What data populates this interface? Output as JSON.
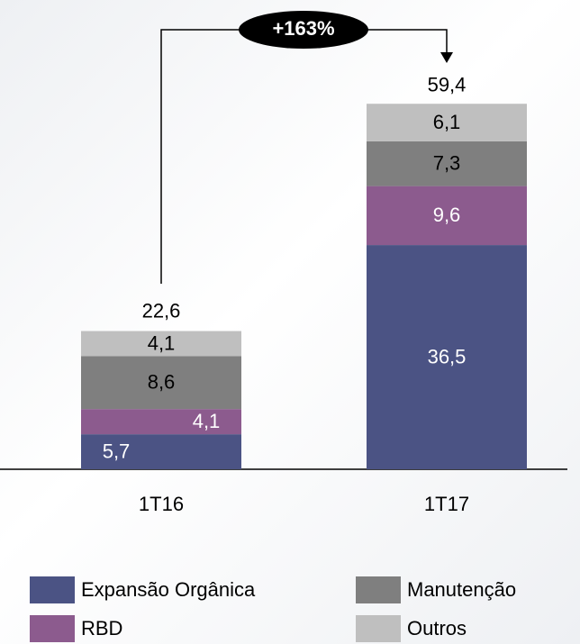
{
  "chart_data": {
    "type": "stacked_bar",
    "categories": [
      "1T16",
      "1T17"
    ],
    "series": [
      {
        "name": "Expansão Orgânica",
        "color": "#4b5384",
        "values": [
          5.7,
          36.5
        ],
        "value_labels": [
          "5,7",
          "36,5"
        ]
      },
      {
        "name": "RBD",
        "color": "#8c5b8e",
        "values": [
          4.1,
          9.6
        ],
        "value_labels": [
          "4,1",
          "9,6"
        ]
      },
      {
        "name": "Manutenção",
        "color": "#7f7f7f",
        "values": [
          8.6,
          7.3
        ],
        "value_labels": [
          "8,6",
          "7,3"
        ]
      },
      {
        "name": "Outros",
        "color": "#bfbfbf",
        "values": [
          4.1,
          6.1
        ],
        "value_labels": [
          "4,1",
          "6,1"
        ]
      }
    ],
    "totals": [
      22.6,
      59.4
    ],
    "total_labels": [
      "22,6",
      "59,4"
    ],
    "annotation": "+163%",
    "ylim": [
      0,
      70
    ]
  }
}
